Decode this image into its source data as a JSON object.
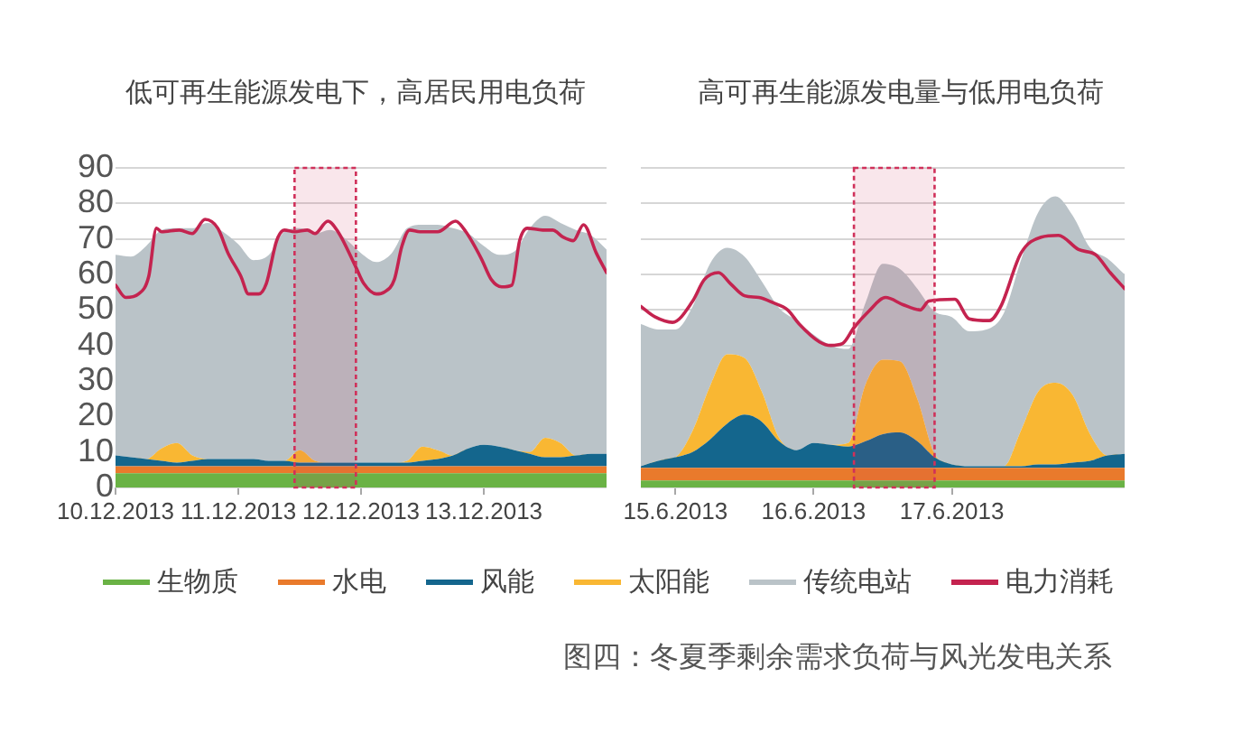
{
  "chart_data": [
    {
      "type": "area",
      "title": "低可再生能源发电下，高居民用电负荷",
      "stacked": true,
      "grid": "y",
      "legend": "bottom",
      "x": [
        "2013-12-10T00:00",
        "2013-12-10T03:00",
        "2013-12-10T06:00",
        "2013-12-10T09:00",
        "2013-12-10T12:00",
        "2013-12-10T15:00",
        "2013-12-10T18:00",
        "2013-12-10T21:00",
        "2013-12-11T00:00",
        "2013-12-11T03:00",
        "2013-12-11T06:00",
        "2013-12-11T09:00",
        "2013-12-11T12:00",
        "2013-12-11T15:00",
        "2013-12-11T18:00",
        "2013-12-11T21:00",
        "2013-12-12T00:00",
        "2013-12-12T03:00",
        "2013-12-12T06:00",
        "2013-12-12T09:00",
        "2013-12-12T12:00",
        "2013-12-12T15:00",
        "2013-12-12T18:00",
        "2013-12-12T21:00",
        "2013-12-13T00:00",
        "2013-12-13T03:00",
        "2013-12-13T06:00",
        "2013-12-13T09:00",
        "2013-12-13T12:00",
        "2013-12-13T15:00",
        "2013-12-13T18:00",
        "2013-12-13T21:00",
        "2013-12-14T00:00"
      ],
      "series": [
        {
          "name": "生物质",
          "color": "#6ab245",
          "values": [
            4,
            4,
            4,
            4,
            4,
            4,
            4,
            4,
            4,
            4,
            4,
            4,
            4,
            4,
            4,
            4,
            4,
            4,
            4,
            4,
            4,
            4,
            4,
            4,
            4,
            4,
            4,
            4,
            4,
            4,
            4,
            4,
            4
          ]
        },
        {
          "name": "水电",
          "color": "#e97a2c",
          "values": [
            2,
            2,
            2,
            2,
            2,
            2,
            2,
            2,
            2,
            2,
            2,
            2,
            2,
            2,
            2,
            2,
            2,
            2,
            2,
            2,
            2,
            2,
            2,
            2,
            2,
            2,
            2,
            2,
            2,
            2,
            2,
            2,
            2
          ]
        },
        {
          "name": "风能",
          "color": "#14668d",
          "values": [
            3,
            2.5,
            2,
            1.5,
            1,
            1.5,
            2,
            2,
            2,
            2,
            1.5,
            1.5,
            1,
            1,
            1,
            1,
            1,
            1,
            1,
            1,
            1.5,
            2,
            3,
            5,
            6,
            5.5,
            4.5,
            3.5,
            2.5,
            2.5,
            3,
            3.5,
            3.5
          ]
        },
        {
          "name": "太阳能",
          "color": "#f9b733",
          "values": [
            0,
            0,
            0,
            3.5,
            5.5,
            1.5,
            0,
            0,
            0,
            0,
            0,
            0,
            3.5,
            0.5,
            0,
            0,
            0,
            0,
            0,
            0.5,
            4,
            2.5,
            0,
            0,
            0,
            0,
            0,
            0.5,
            5.5,
            4,
            0,
            0,
            0
          ]
        },
        {
          "name": "传统电站",
          "color": "#bac3c8",
          "values": [
            56.5,
            56.5,
            60,
            61.5,
            60.5,
            64,
            66.5,
            64,
            60.5,
            56,
            58,
            64.5,
            62.5,
            64,
            65.5,
            63,
            59,
            56.5,
            59,
            65.5,
            62.5,
            63.5,
            64,
            60.5,
            56,
            54,
            56,
            63,
            62.5,
            62,
            63.5,
            61.5,
            57.5
          ]
        },
        {
          "name": "电力消耗",
          "type": "line",
          "color": "#c4234f",
          "x": [
            "2013-12-10T00:00",
            "2013-12-10T02:00",
            "2013-12-10T04:30",
            "2013-12-10T06:30",
            "2013-12-10T08:00",
            "2013-12-10T09:00",
            "2013-12-10T12:30",
            "2013-12-10T15:00",
            "2013-12-10T17:30",
            "2013-12-10T20:00",
            "2013-12-10T22:00",
            "2013-12-11T00:30",
            "2013-12-11T02:00",
            "2013-12-11T04:00",
            "2013-12-11T05:30",
            "2013-12-11T07:30",
            "2013-12-11T09:00",
            "2013-12-11T11:00",
            "2013-12-11T13:30",
            "2013-12-11T15:00",
            "2013-12-11T17:30",
            "2013-12-11T19:30",
            "2013-12-11T23:00",
            "2013-12-12T00:30",
            "2013-12-12T03:00",
            "2013-12-12T04:30",
            "2013-12-12T06:30",
            "2013-12-12T08:00",
            "2013-12-12T09:30",
            "2013-12-12T11:30",
            "2013-12-12T15:00",
            "2013-12-12T18:30",
            "2013-12-12T20:30",
            "2013-12-12T23:30",
            "2013-12-13T01:30",
            "2013-12-13T03:30",
            "2013-12-13T05:30",
            "2013-12-13T07:00",
            "2013-12-13T08:30",
            "2013-12-13T11:30",
            "2013-12-13T13:30",
            "2013-12-13T15:30",
            "2013-12-13T17:30",
            "2013-12-13T19:30",
            "2013-12-13T22:00",
            "2013-12-14T00:00"
          ],
          "values": [
            57,
            53.5,
            54.5,
            59.5,
            73,
            72,
            72.5,
            71.5,
            75.5,
            73,
            66,
            59.5,
            54.5,
            54.5,
            57.5,
            69.5,
            72.5,
            72,
            72.5,
            71.5,
            75,
            72,
            62,
            57.5,
            54.5,
            55,
            58.5,
            68,
            72.5,
            72,
            72,
            75,
            72,
            64.5,
            58.5,
            56.5,
            57,
            69.5,
            73,
            72.5,
            72.5,
            70.5,
            69.5,
            74,
            66,
            60.5
          ]
        }
      ],
      "xlim": [
        "2013-12-10T00:00",
        "2013-12-14T00:00"
      ],
      "xticks": [
        {
          "value": "2013-12-10",
          "label": "10.12.2013"
        },
        {
          "value": "2013-12-11",
          "label": "11.12.2013"
        },
        {
          "value": "2013-12-12",
          "label": "12.12.2013"
        },
        {
          "value": "2013-12-13",
          "label": "13.12.2013"
        }
      ],
      "ylim": [
        0,
        90
      ],
      "yticks": [
        0,
        10,
        20,
        30,
        40,
        50,
        60,
        70,
        80,
        90
      ],
      "bands": [
        {
          "axis": "x",
          "from": "2013-12-11T11:00",
          "to": "2013-12-11T23:00",
          "color": "#d0305a"
        }
      ]
    },
    {
      "type": "area",
      "title": "高可再生能源发电量与低用电负荷",
      "stacked": true,
      "grid": "y",
      "tick_labels": "x",
      "x": [
        "2013-06-14T18:00",
        "2013-06-14T21:00",
        "2013-06-15T00:00",
        "2013-06-15T03:00",
        "2013-06-15T06:00",
        "2013-06-15T09:00",
        "2013-06-15T12:00",
        "2013-06-15T15:00",
        "2013-06-15T18:00",
        "2013-06-15T21:00",
        "2013-06-16T00:00",
        "2013-06-16T03:00",
        "2013-06-16T06:00",
        "2013-06-16T09:00",
        "2013-06-16T12:00",
        "2013-06-16T15:00",
        "2013-06-16T18:00",
        "2013-06-16T21:00",
        "2013-06-17T00:00",
        "2013-06-17T03:00",
        "2013-06-17T06:00",
        "2013-06-17T09:00",
        "2013-06-17T12:00",
        "2013-06-17T15:00",
        "2013-06-17T18:00",
        "2013-06-17T21:00",
        "2013-06-18T00:00",
        "2013-06-18T03:00",
        "2013-06-18T06:00"
      ],
      "series": [
        {
          "color": "#6ab245",
          "values": [
            2,
            2,
            2,
            2,
            2,
            2,
            2,
            2,
            2,
            2,
            2,
            2,
            2,
            2,
            2,
            2,
            2,
            2,
            2,
            2,
            2,
            2,
            2,
            2,
            2,
            2,
            2,
            2,
            2
          ]
        },
        {
          "color": "#e97a2c",
          "values": [
            3.5,
            3.5,
            3.5,
            3.5,
            3.5,
            3.5,
            3.5,
            3.5,
            3.5,
            3.5,
            3.5,
            3.5,
            3.5,
            3.5,
            3.5,
            3.5,
            3.5,
            3.5,
            3.5,
            3.5,
            3.5,
            3.5,
            3.5,
            3.5,
            3.5,
            3.5,
            3.5,
            3.5,
            3.5
          ]
        },
        {
          "color": "#14668d",
          "values": [
            0.5,
            2,
            3,
            4.5,
            8,
            12.5,
            15,
            13,
            7.5,
            5,
            7,
            6.5,
            6,
            7.5,
            9.5,
            10,
            7.5,
            3,
            1,
            0.5,
            0.5,
            0.5,
            0.5,
            1,
            1,
            1.5,
            2,
            3.5,
            4
          ]
        },
        {
          "color": "#f9b733",
          "values": [
            0,
            0,
            0,
            6,
            15,
            19.5,
            16,
            8.5,
            1,
            0,
            0,
            0,
            1,
            16,
            21,
            20,
            12,
            1,
            0,
            0,
            0,
            0,
            10,
            20.5,
            23,
            19,
            7.5,
            0,
            0
          ]
        },
        {
          "color": "#bac3c8",
          "values": [
            40,
            37,
            36,
            35,
            34.5,
            30,
            28.5,
            31,
            36.5,
            36.5,
            30.5,
            28,
            26.5,
            23,
            27,
            26,
            31,
            40,
            41.5,
            38,
            38.5,
            43,
            48,
            50.5,
            52.5,
            50.5,
            52.5,
            55.5,
            50.5
          ]
        },
        {
          "type": "line",
          "color": "#c4234f",
          "x": [
            "2013-06-14T18:00",
            "2013-06-14T20:30",
            "2013-06-14T23:30",
            "2013-06-15T03:00",
            "2013-06-15T05:00",
            "2013-06-15T07:30",
            "2013-06-15T09:30",
            "2013-06-15T12:00",
            "2013-06-15T14:30",
            "2013-06-15T17:00",
            "2013-06-15T19:30",
            "2013-06-15T21:30",
            "2013-06-16T01:00",
            "2013-06-16T03:00",
            "2013-06-16T05:00",
            "2013-06-16T07:00",
            "2013-06-16T09:30",
            "2013-06-16T12:30",
            "2013-06-16T15:30",
            "2013-06-16T18:30",
            "2013-06-16T20:00",
            "2013-06-17T00:30",
            "2013-06-17T03:00",
            "2013-06-17T06:30",
            "2013-06-17T08:30",
            "2013-06-17T12:00",
            "2013-06-17T15:30",
            "2013-06-17T18:30",
            "2013-06-17T22:00",
            "2013-06-18T01:00",
            "2013-06-18T03:30",
            "2013-06-18T06:00"
          ],
          "values": [
            51,
            48,
            46.5,
            52.5,
            58.5,
            60.5,
            57.5,
            54,
            53.5,
            52,
            50,
            46,
            41,
            40,
            40.5,
            45,
            49.5,
            53.5,
            51.5,
            50,
            52.5,
            53,
            47.5,
            47,
            51,
            66,
            70.5,
            71,
            67,
            65.5,
            60.5,
            56
          ]
        }
      ],
      "xlim": [
        "2013-06-14T18:00",
        "2013-06-18T06:00"
      ],
      "xticks": [
        {
          "value": "2013-06-15",
          "label": "15.6.2013"
        },
        {
          "value": "2013-06-16",
          "label": "16.6.2013"
        },
        {
          "value": "2013-06-17",
          "label": "17.6.2013"
        }
      ],
      "ylim": [
        0,
        90
      ],
      "yticks": [
        0,
        10,
        20,
        30,
        40,
        50,
        60,
        70,
        80,
        90
      ],
      "bands": [
        {
          "axis": "x",
          "from": "2013-06-16T07:00",
          "to": "2013-06-16T21:00",
          "color": "#d0305a"
        }
      ],
      "annotations": [
        "图四：冬夏季剩余需求负荷与风光发电关系"
      ]
    }
  ]
}
